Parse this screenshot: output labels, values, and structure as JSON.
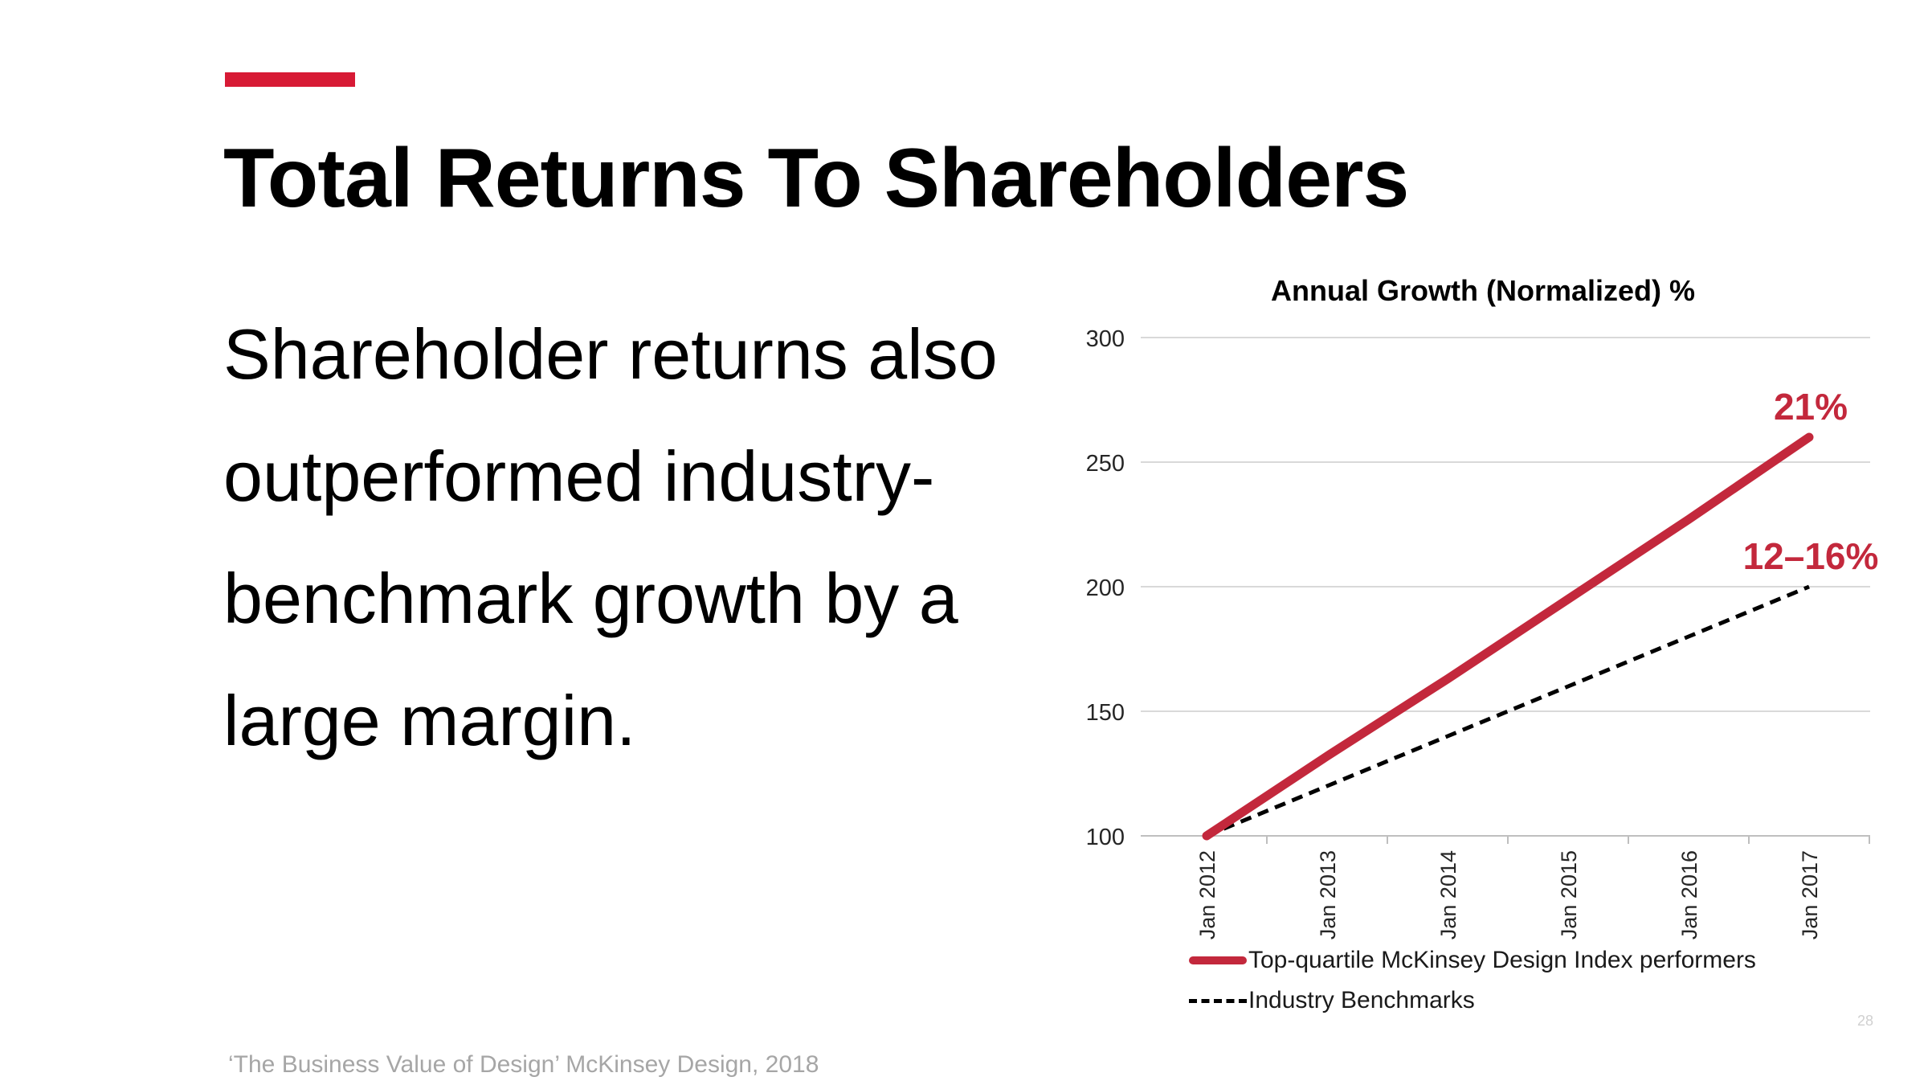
{
  "slide": {
    "title": "Total Returns To Shareholders",
    "body": "Shareholder returns also outperformed industry-benchmark growth by a large margin.",
    "source": "‘The Business Value of Design’ McKinsey Design, 2018",
    "page_number": "28",
    "accent_color": "#d71a35"
  },
  "chart_data": {
    "type": "line",
    "title": "Annual Growth (Normalized) %",
    "xlabel": "",
    "ylabel": "",
    "categories": [
      "Jan 2012",
      "Jan 2013",
      "Jan 2014",
      "Jan 2015",
      "Jan 2016",
      "Jan 2017"
    ],
    "ylim": [
      100,
      300
    ],
    "yticks": [
      100,
      150,
      200,
      250,
      300
    ],
    "grid": true,
    "legend_position": "bottom-left",
    "series": [
      {
        "name": "Top-quartile McKinsey Design Index performers",
        "values": [
          100,
          132,
          163,
          195,
          227,
          260
        ],
        "color": "#c3283c",
        "style": "solid",
        "end_label": "21%"
      },
      {
        "name": "Industry Benchmarks",
        "values": [
          100,
          120,
          140,
          160,
          180,
          200
        ],
        "color": "#000000",
        "style": "dashed",
        "end_label": "12–16%"
      }
    ]
  }
}
